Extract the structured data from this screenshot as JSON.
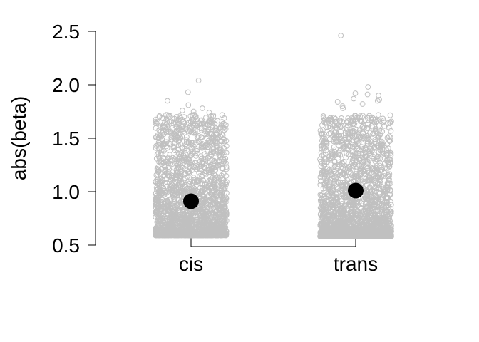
{
  "chart_data": {
    "type": "scatter",
    "subtype": "jitter-strip-with-mean",
    "title": "",
    "xlabel": "",
    "ylabel": "abs(beta)",
    "categories": [
      "cis",
      "trans"
    ],
    "ylim": [
      0.5,
      2.5
    ],
    "yticks": [
      "0.5",
      "1.0",
      "1.5",
      "2.0",
      "2.5"
    ],
    "grid": false,
    "series": [
      {
        "category": "cis",
        "mean": 0.91,
        "range": [
          0.59,
          2.04
        ],
        "outliers": [
          2.04,
          1.93,
          1.85,
          1.81,
          1.78,
          1.76,
          1.75,
          1.74,
          1.72,
          1.7
        ]
      },
      {
        "category": "trans",
        "mean": 1.01,
        "range": [
          0.58,
          2.46
        ],
        "outliers": [
          2.46,
          1.98,
          1.92,
          1.91,
          1.9,
          1.87,
          1.86,
          1.85,
          1.84,
          1.82,
          1.8,
          1.78
        ]
      }
    ],
    "point_color": "#c0c0c0",
    "mean_color": "#000000"
  }
}
